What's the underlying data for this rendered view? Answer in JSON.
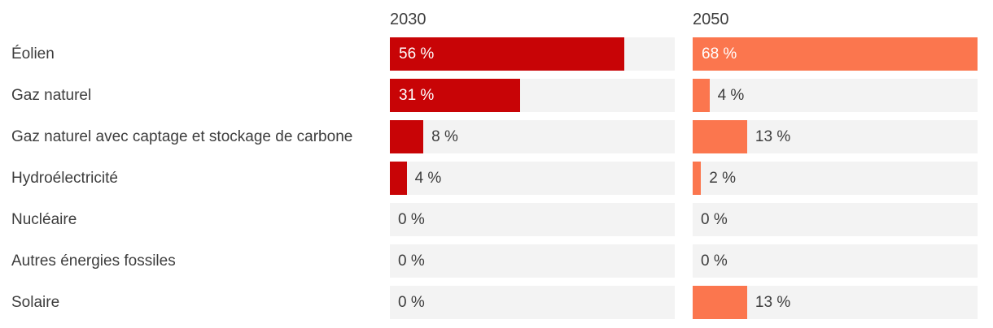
{
  "chart_data": {
    "type": "bar",
    "orientation": "horizontal",
    "title": "",
    "xlabel": "",
    "ylabel": "",
    "categories": [
      "Éolien",
      "Gaz naturel",
      "Gaz naturel avec captage et stockage de carbone",
      "Hydroélectricité",
      "Nucléaire",
      "Autres énergies fossiles",
      "Solaire"
    ],
    "series": [
      {
        "name": "2030",
        "values": [
          56,
          31,
          8,
          4,
          0,
          0,
          0
        ],
        "color": "#c80406"
      },
      {
        "name": "2050",
        "values": [
          68,
          4,
          13,
          2,
          0,
          0,
          13
        ],
        "color": "#fb764e"
      }
    ],
    "value_suffix": " %",
    "scale_max": 68,
    "xlim": [
      0,
      68
    ],
    "grid": false,
    "legend_position": "column-headers",
    "track_color": "#f3f3f3",
    "text_color": "#3d3d3d",
    "inside_label_color": "#ffffff",
    "background_color": "#ffffff"
  }
}
